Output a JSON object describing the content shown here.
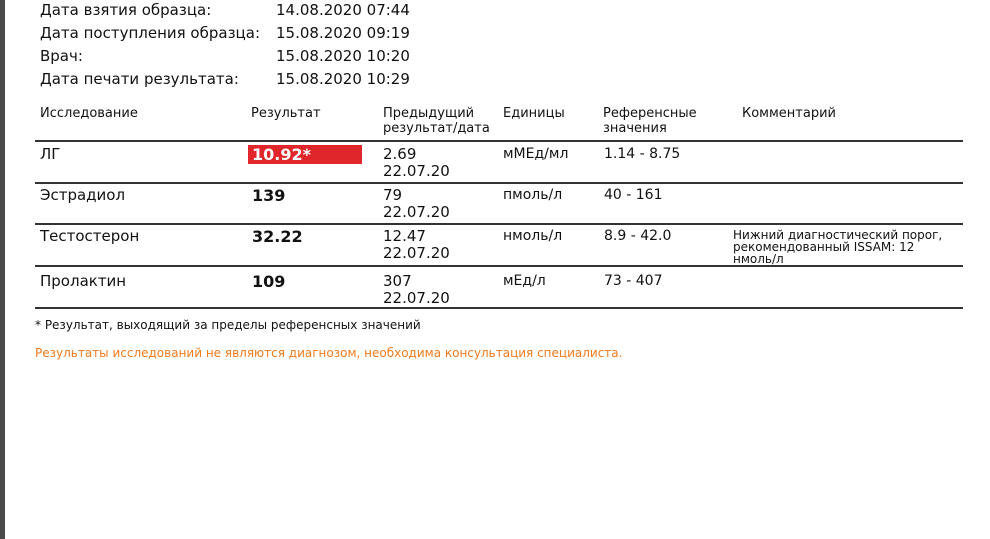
{
  "info": [
    {
      "label": "Дата взятия образца:",
      "value": "14.08.2020 07:44"
    },
    {
      "label": "Дата поступления образца:",
      "value": "15.08.2020 09:19"
    },
    {
      "label": "Врач:",
      "value": "15.08.2020 10:20"
    },
    {
      "label": "Дата печати результата:",
      "value": "15.08.2020 10:29"
    }
  ],
  "table": {
    "headers": {
      "test": "Исследование",
      "result": "Результат",
      "prev1": "Предыдущий",
      "prev2": "результат/дата",
      "units": "Единицы",
      "ref1": "Референсные",
      "ref2": "значения",
      "comment": "Комментарий"
    },
    "rows": [
      {
        "test": "ЛГ",
        "result": "10.92*",
        "flagged": true,
        "prev": "2.69",
        "prev_date": "22.07.20",
        "units": "мМЕд/мл",
        "ref": "1.14 - 8.75",
        "comment": ""
      },
      {
        "test": "Эстрадиол",
        "result": "139",
        "flagged": false,
        "prev": "79",
        "prev_date": "22.07.20",
        "units": "пмоль/л",
        "ref": "40 - 161",
        "comment": ""
      },
      {
        "test": "Тестостерон",
        "result": "32.22",
        "flagged": false,
        "prev": "12.47",
        "prev_date": "22.07.20",
        "units": "нмоль/л",
        "ref": "8.9 - 42.0",
        "comment_lines": [
          "Нижний диагностический порог,",
          "рекомендованный ISSAM: 12",
          "нмоль/л"
        ]
      },
      {
        "test": "Пролактин",
        "result": "109",
        "flagged": false,
        "prev": "307",
        "prev_date": "22.07.20",
        "units": "мЕд/л",
        "ref": "73 - 407",
        "comment": ""
      }
    ]
  },
  "footnote": "* Результат, выходящий за пределы референсных значений",
  "warning": "Результаты исследований не являются диагнозом, необходима консультация специалиста.",
  "colors": {
    "flag": "#e0262b",
    "warning": "#f07a1c"
  }
}
